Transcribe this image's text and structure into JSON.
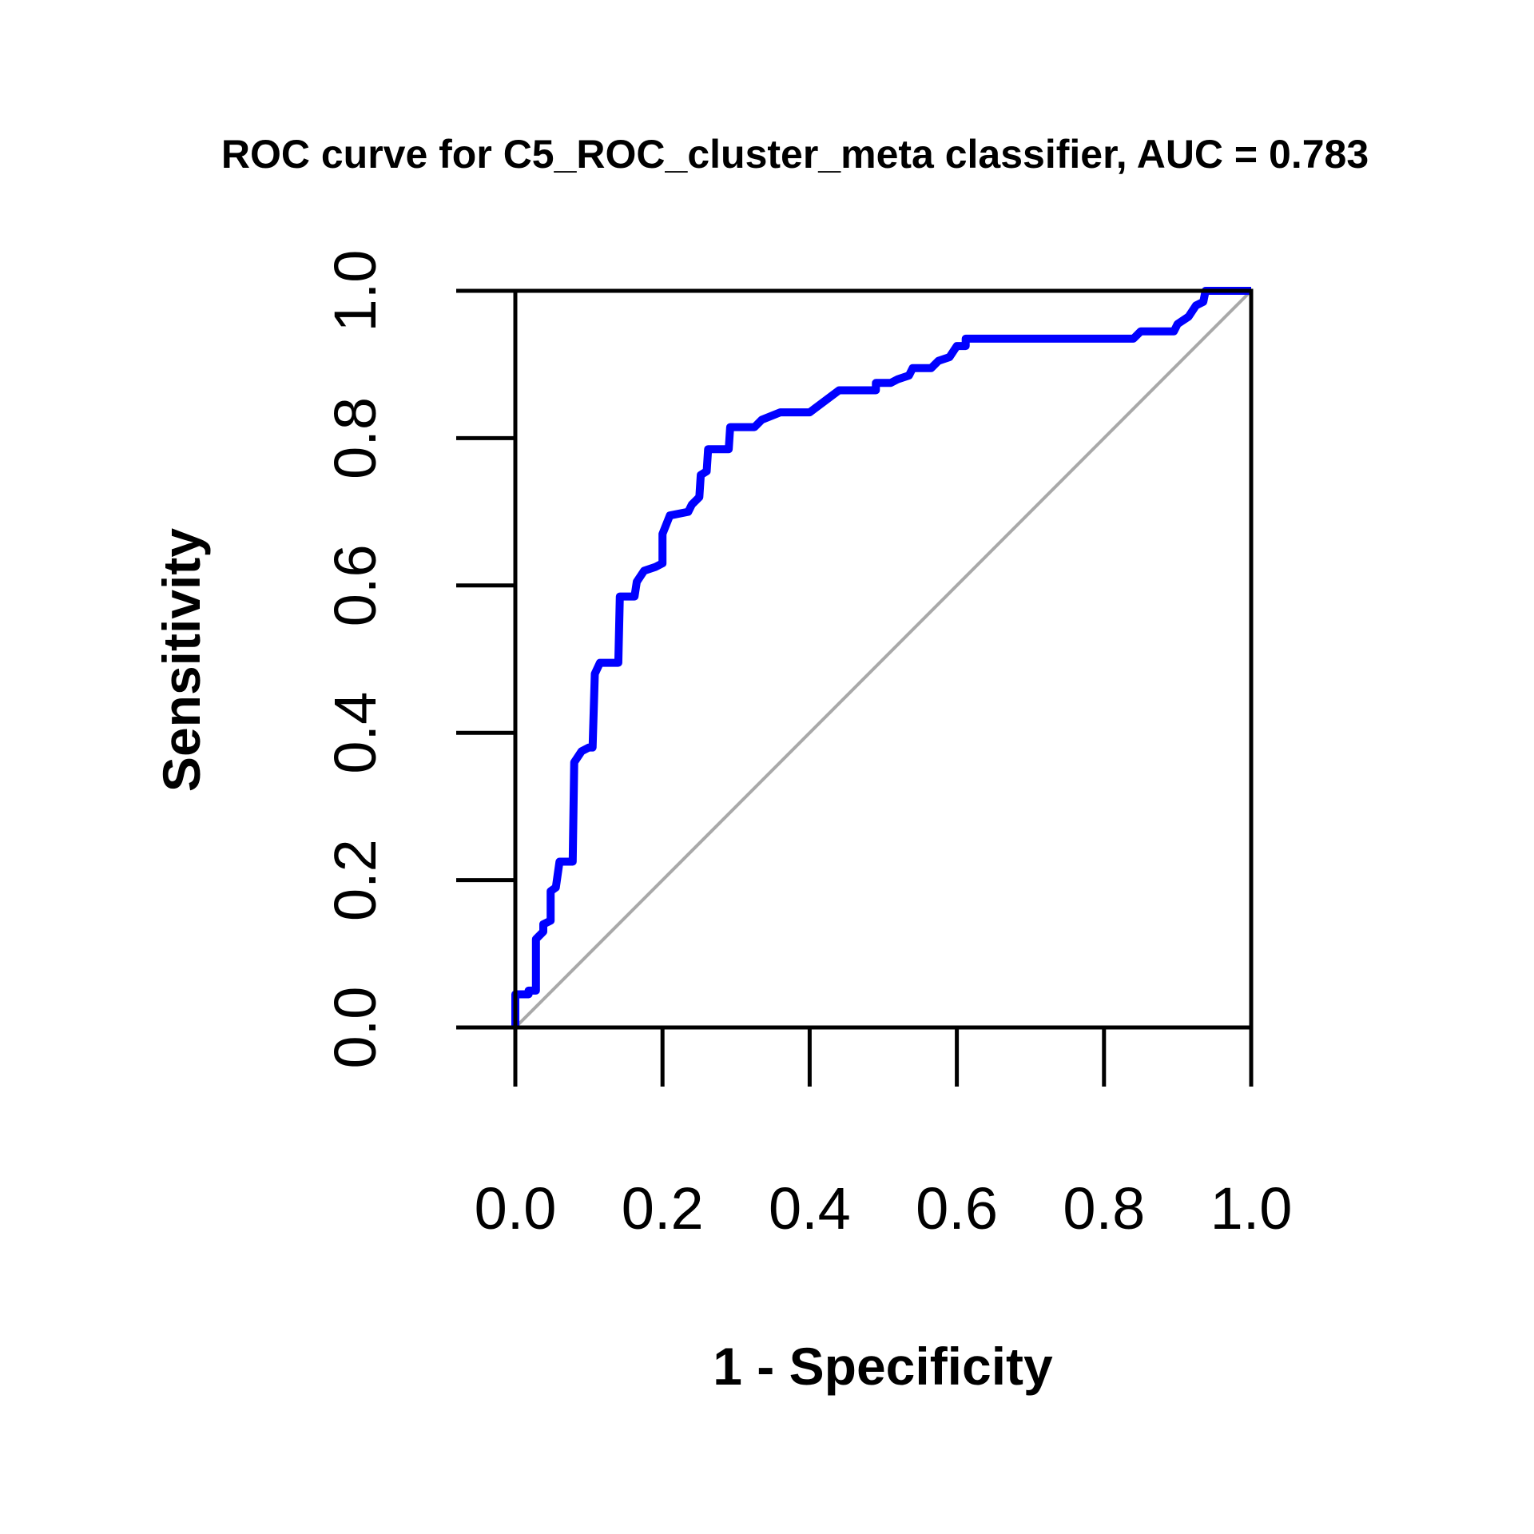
{
  "chart_data": {
    "type": "line",
    "title": "ROC curve for C5_ROC_cluster_meta classifier, AUC = 0.783",
    "xlabel": "1 - Specificity",
    "ylabel": "Sensitivity",
    "xlim": [
      0,
      1
    ],
    "ylim": [
      0,
      1
    ],
    "xticks": [
      "0.0",
      "0.2",
      "0.4",
      "0.6",
      "0.8",
      "1.0"
    ],
    "yticks": [
      "0.0",
      "0.2",
      "0.4",
      "0.6",
      "0.8",
      "1.0"
    ],
    "grid": false,
    "legend": "none",
    "series": [
      {
        "color": "#0000ff",
        "points": [
          [
            0.0,
            0.0
          ],
          [
            0.0,
            0.045
          ],
          [
            0.018,
            0.045
          ],
          [
            0.018,
            0.05
          ],
          [
            0.028,
            0.05
          ],
          [
            0.028,
            0.12
          ],
          [
            0.038,
            0.13
          ],
          [
            0.038,
            0.14
          ],
          [
            0.048,
            0.145
          ],
          [
            0.048,
            0.185
          ],
          [
            0.055,
            0.19
          ],
          [
            0.06,
            0.225
          ],
          [
            0.078,
            0.225
          ],
          [
            0.08,
            0.36
          ],
          [
            0.09,
            0.375
          ],
          [
            0.1,
            0.38
          ],
          [
            0.105,
            0.38
          ],
          [
            0.108,
            0.48
          ],
          [
            0.115,
            0.495
          ],
          [
            0.14,
            0.495
          ],
          [
            0.142,
            0.585
          ],
          [
            0.162,
            0.585
          ],
          [
            0.165,
            0.605
          ],
          [
            0.175,
            0.62
          ],
          [
            0.19,
            0.625
          ],
          [
            0.2,
            0.63
          ],
          [
            0.2,
            0.67
          ],
          [
            0.21,
            0.695
          ],
          [
            0.235,
            0.7
          ],
          [
            0.24,
            0.71
          ],
          [
            0.25,
            0.72
          ],
          [
            0.252,
            0.75
          ],
          [
            0.26,
            0.755
          ],
          [
            0.262,
            0.785
          ],
          [
            0.29,
            0.785
          ],
          [
            0.292,
            0.815
          ],
          [
            0.325,
            0.815
          ],
          [
            0.335,
            0.825
          ],
          [
            0.36,
            0.835
          ],
          [
            0.4,
            0.835
          ],
          [
            0.44,
            0.865
          ],
          [
            0.49,
            0.865
          ],
          [
            0.49,
            0.875
          ],
          [
            0.51,
            0.875
          ],
          [
            0.52,
            0.88
          ],
          [
            0.535,
            0.885
          ],
          [
            0.54,
            0.895
          ],
          [
            0.565,
            0.895
          ],
          [
            0.575,
            0.905
          ],
          [
            0.59,
            0.91
          ],
          [
            0.6,
            0.925
          ],
          [
            0.612,
            0.925
          ],
          [
            0.612,
            0.935
          ],
          [
            0.84,
            0.935
          ],
          [
            0.85,
            0.945
          ],
          [
            0.895,
            0.945
          ],
          [
            0.9,
            0.955
          ],
          [
            0.915,
            0.965
          ],
          [
            0.925,
            0.98
          ],
          [
            0.935,
            0.985
          ],
          [
            0.938,
            1.0
          ],
          [
            1.0,
            1.0
          ]
        ]
      },
      {
        "color": "#a9a9a9",
        "points": [
          [
            0,
            0
          ],
          [
            1,
            1
          ]
        ]
      }
    ]
  }
}
